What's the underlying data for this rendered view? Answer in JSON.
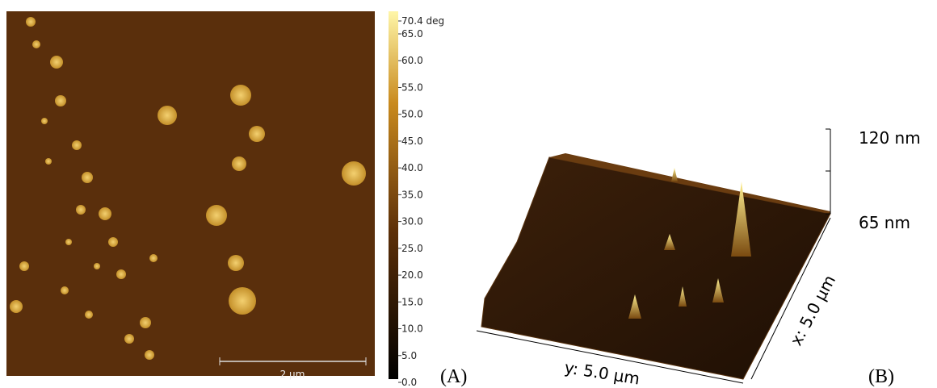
{
  "panel_a": {
    "scale_bar": "2 µm",
    "label": "(A)"
  },
  "colorbar": {
    "labels": [
      "70.4 deg",
      "65.0",
      "60.0",
      "55.0",
      "50.0",
      "45.0",
      "40.0",
      "35.0",
      "30.0",
      "25.0",
      "20.0",
      "15.0",
      "10.0",
      "5.0",
      "0.0"
    ]
  },
  "panel_b": {
    "z_top": "120 nm",
    "z_bottom": "65 nm",
    "y_axis": "y: 5.0 µm",
    "x_axis": "x: 5.0 µm",
    "label": "(B)"
  }
}
